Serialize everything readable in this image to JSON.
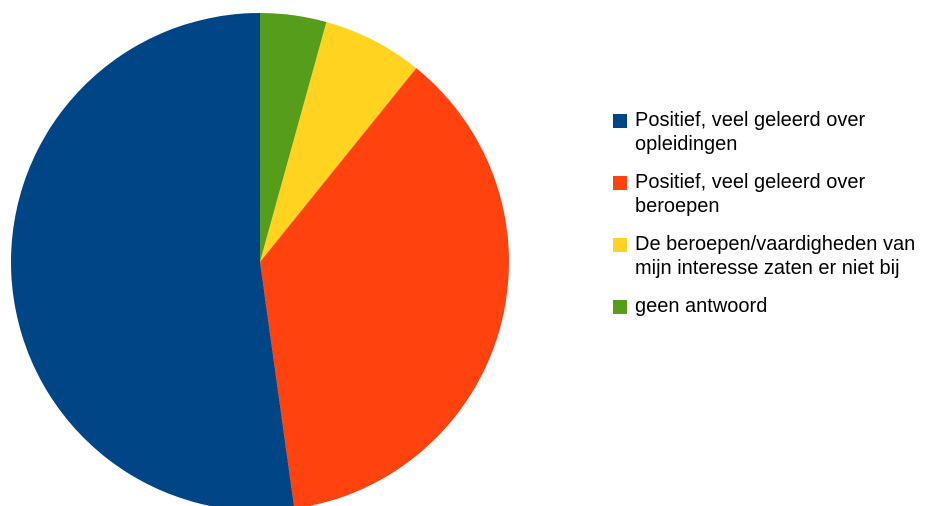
{
  "chart_data": {
    "type": "pie",
    "title": "",
    "legend_position": "right",
    "start_angle_deg": 0,
    "direction": "clockwise",
    "slices": [
      {
        "label": "geen antwoord",
        "value": 4.3,
        "color": "#579D1C"
      },
      {
        "label": "De beroepen/vaardigheden van mijn interesse zaten er niet bij",
        "value": 6.5,
        "color": "#FFD320"
      },
      {
        "label": "Positief, veel geleerd over beroepen",
        "value": 37.0,
        "color": "#FF420E"
      },
      {
        "label": "Positief, veel geleerd over opleidingen",
        "value": 52.2,
        "color": "#004586"
      }
    ],
    "legend": [
      {
        "label": "Positief, veel geleerd over opleidingen",
        "color": "#004586"
      },
      {
        "label": "Positief, veel geleerd over beroepen",
        "color": "#FF420E"
      },
      {
        "label": "De beroepen/vaardigheden van mijn interesse zaten er niet bij",
        "color": "#FFD320"
      },
      {
        "label": "geen antwoord",
        "color": "#579D1C"
      }
    ]
  }
}
